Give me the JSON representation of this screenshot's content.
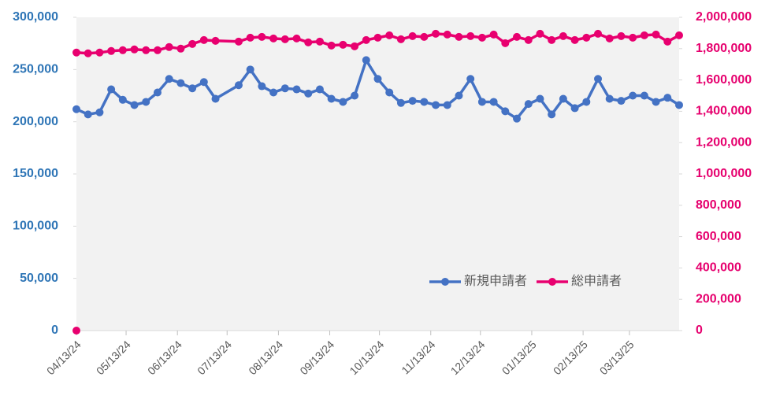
{
  "chart_data": {
    "type": "line",
    "x": [
      "04/13/24",
      null,
      "04/13/24",
      "04/20/24",
      "04/27/24",
      "05/04/24",
      "05/11/24",
      "05/18/24",
      "05/25/24",
      "06/01/24",
      "06/08/24",
      "06/15/24",
      "06/22/24",
      "06/29/24",
      "07/06/24",
      "07/20/24",
      "07/27/24",
      "08/03/24",
      "08/10/24",
      "08/17/24",
      "08/24/24",
      "08/31/24",
      "09/07/24",
      "09/14/24",
      "09/21/24",
      "09/28/24",
      "10/05/24",
      "10/12/24",
      "10/19/24",
      "10/26/24",
      "11/02/24",
      "11/09/24",
      "11/16/24",
      "11/23/24",
      "11/30/24",
      "12/07/24",
      "12/14/24",
      "12/21/24",
      "12/28/24",
      "01/04/25",
      "01/11/25",
      "01/18/25",
      "01/25/25",
      "02/01/25",
      "02/08/25",
      "02/15/25",
      "02/22/25",
      "03/01/25",
      "03/08/25",
      "03/15/25",
      "03/22/25",
      "03/29/25",
      "04/05/25",
      "04/12/25"
    ],
    "series": [
      {
        "name": "新規申請者",
        "color": "#4472c4",
        "axis": "y",
        "values": [
          null,
          null,
          212000,
          207000,
          209000,
          231000,
          221000,
          216000,
          219000,
          228000,
          241000,
          237000,
          232000,
          238000,
          222000,
          235000,
          250000,
          234000,
          228000,
          232000,
          231000,
          227000,
          231000,
          222000,
          219000,
          225000,
          259000,
          241000,
          228000,
          218000,
          220000,
          219000,
          216000,
          216000,
          225000,
          241000,
          219000,
          219000,
          210000,
          203000,
          217000,
          222000,
          207000,
          222000,
          213000,
          219000,
          241000,
          222000,
          220000,
          225000,
          225000,
          219000,
          223000,
          216000
        ]
      },
      {
        "name": "総申請者",
        "color": "#e8006f",
        "axis": "y2",
        "values": [
          0,
          null,
          1775000,
          1770000,
          1775000,
          1785000,
          1790000,
          1795000,
          1790000,
          1790000,
          1810000,
          1800000,
          1830000,
          1855000,
          1850000,
          1845000,
          1870000,
          1875000,
          1865000,
          1860000,
          1865000,
          1840000,
          1845000,
          1820000,
          1825000,
          1815000,
          1855000,
          1870000,
          1885000,
          1860000,
          1880000,
          1875000,
          1895000,
          1890000,
          1875000,
          1880000,
          1870000,
          1890000,
          1835000,
          1875000,
          1855000,
          1895000,
          1855000,
          1880000,
          1855000,
          1870000,
          1895000,
          1865000,
          1880000,
          1870000,
          1885000,
          1890000,
          1845000,
          1885000
        ]
      }
    ],
    "xlim": [
      "04/13/24",
      "04/12/25"
    ],
    "xticks": [
      "04/13/24",
      "05/13/24",
      "06/13/24",
      "07/13/24",
      "08/13/24",
      "09/13/24",
      "10/13/24",
      "11/13/24",
      "12/13/24",
      "01/13/25",
      "02/13/25",
      "03/13/25"
    ],
    "ylim": [
      0,
      300000
    ],
    "yticks": [
      0,
      {
        "value": 50000,
        "label": "50,000"
      },
      {
        "value": 100000,
        "label": "100,000"
      },
      {
        "value": 150000,
        "label": "150,000"
      },
      {
        "value": 200000,
        "label": "200,000"
      },
      {
        "value": 250000,
        "label": "250,000"
      },
      {
        "value": 300000,
        "label": "300,000"
      }
    ],
    "y2lim": [
      0,
      2000000
    ],
    "y2ticks": [
      0,
      {
        "value": 200000,
        "label": "200,000"
      },
      {
        "value": 400000,
        "label": "400,000"
      },
      {
        "value": 600000,
        "label": "600,000"
      },
      {
        "value": 800000,
        "label": "800,000"
      },
      {
        "value": 1000000,
        "label": "1,000,000"
      },
      {
        "value": 1200000,
        "label": "1,200,000"
      },
      {
        "value": 1400000,
        "label": "1,400,000"
      },
      {
        "value": 1600000,
        "label": "1,600,000"
      },
      {
        "value": 1800000,
        "label": "1,800,000"
      },
      {
        "value": 2000000,
        "label": "2,000,000"
      }
    ],
    "legend": "lower-right"
  }
}
